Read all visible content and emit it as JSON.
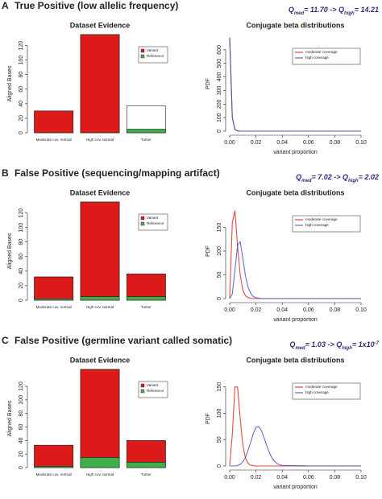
{
  "panels": [
    {
      "letter": "A",
      "title": "True Positive (low allelic frequency)",
      "annotation": {
        "q": "Q",
        "med": "med",
        "from": "= 11.70 -> Q",
        "high": "high",
        "to": "= 14.21"
      }
    },
    {
      "letter": "B",
      "title": "False Positive (sequencing/mapping artifact)",
      "annotation": {
        "q": "Q",
        "med": "med",
        "from": "= 7.02 -> Q",
        "high": "high",
        "to": "= 2.02"
      }
    },
    {
      "letter": "C",
      "title": "False Positive (germline variant called somatic)",
      "annotation": {
        "q": "Q",
        "med": "med",
        "from": "= 1.03 -> Q",
        "high": "high",
        "to": "= 1x10",
        "to_exp": "-7"
      }
    }
  ],
  "chart_data": [
    {
      "type": "bar",
      "title": "Dataset Evidence",
      "ylabel": "Aligned Bases",
      "categories": [
        "Moderate cov. normal",
        "High cov. normal",
        "Tumor"
      ],
      "depth": [
        30,
        135,
        37
      ],
      "series": [
        {
          "name": "Variant",
          "color": "#dd1a1a",
          "values": [
            30,
            135,
            0
          ]
        },
        {
          "name": "Reference",
          "color": "#3fae4a",
          "values": [
            0,
            0,
            5
          ]
        }
      ],
      "ylim": [
        0,
        135
      ],
      "yticks": [
        0,
        20,
        40,
        60,
        80,
        100,
        120
      ]
    },
    {
      "type": "line",
      "title": "Conjugate beta distributions",
      "xlabel": "variant proportion",
      "ylabel": "PDF",
      "x": [
        0,
        0.002,
        0.004,
        0.006,
        0.008,
        0.01,
        0.012,
        0.014,
        0.016,
        0.018,
        0.02,
        0.022,
        0.024,
        0.026,
        0.028,
        0.03,
        0.032,
        0.034,
        0.036,
        0.038,
        0.04,
        0.06,
        0.08,
        0.1
      ],
      "series": [
        {
          "name": "moderate coverage",
          "color": "#e31a1c",
          "values": [
            690,
            100,
            12,
            2,
            0,
            0,
            0,
            0,
            0,
            0,
            0,
            0,
            0,
            0,
            0,
            0,
            0,
            0,
            0,
            0,
            0,
            0,
            0,
            0
          ]
        },
        {
          "name": "high coverage",
          "color": "#3b4cc0",
          "values": [
            690,
            100,
            12,
            2,
            0,
            0,
            0,
            0,
            0,
            0,
            0,
            0,
            0,
            0,
            0,
            0,
            0,
            0,
            0,
            0,
            0,
            0,
            0,
            0
          ]
        }
      ],
      "xlim": [
        0,
        0.1
      ],
      "xticks": [
        {
          "value": 0,
          "label": "0.00"
        },
        0.02,
        0.04,
        0.06,
        0.08,
        {
          "value": 0.1,
          "label": "0.10"
        }
      ],
      "ylim": [
        0,
        700
      ],
      "yticks": [
        0,
        100,
        200,
        300,
        400,
        500,
        600
      ]
    },
    {
      "type": "bar",
      "title": "Dataset Evidence",
      "ylabel": "Aligned Bases",
      "categories": [
        "Moderate cov. normal",
        "High cov. normal",
        "Tumor"
      ],
      "depth": [
        32,
        135,
        36
      ],
      "series": [
        {
          "name": "Variant",
          "color": "#dd1a1a",
          "values": [
            30,
            130,
            31
          ]
        },
        {
          "name": "Reference",
          "color": "#3fae4a",
          "values": [
            2,
            5,
            5
          ]
        }
      ],
      "ylim": [
        0,
        135
      ],
      "yticks": [
        0,
        20,
        40,
        60,
        80,
        100,
        120
      ]
    },
    {
      "type": "line",
      "title": "Conjugate beta distributions",
      "xlabel": "variant proportion",
      "ylabel": "PDF",
      "x": [
        0,
        0.002,
        0.004,
        0.006,
        0.008,
        0.01,
        0.012,
        0.014,
        0.016,
        0.018,
        0.02,
        0.022,
        0.024,
        0.026,
        0.028,
        0.03,
        0.032,
        0.034,
        0.036,
        0.038,
        0.04,
        0.06,
        0.08,
        0.1
      ],
      "series": [
        {
          "name": "moderate coverage",
          "color": "#e31a1c",
          "values": [
            0,
            160,
            185,
            110,
            50,
            18,
            6,
            2,
            0.5,
            0,
            0,
            0,
            0,
            0,
            0,
            0,
            0,
            0,
            0,
            0,
            0,
            0,
            0,
            0
          ]
        },
        {
          "name": "high coverage",
          "color": "#3b4cc0",
          "values": [
            0,
            10,
            60,
            112,
            120,
            85,
            48,
            24,
            11,
            4,
            2,
            1,
            0,
            0,
            0,
            0,
            0,
            0,
            0,
            0,
            0,
            0,
            0,
            0
          ]
        }
      ],
      "xlim": [
        0,
        0.1
      ],
      "xticks": [
        {
          "value": 0,
          "label": "0.00"
        },
        0.02,
        0.04,
        0.06,
        0.08,
        {
          "value": 0.1,
          "label": "0.10"
        }
      ],
      "ylim": [
        0,
        200
      ],
      "yticks": [
        0,
        50,
        100,
        150
      ]
    },
    {
      "type": "bar",
      "title": "Dataset Evidence",
      "ylabel": "Aligned Bases",
      "categories": [
        "Moderate cov. normal",
        "High cov. normal",
        "Tumor"
      ],
      "depth": [
        33,
        145,
        40
      ],
      "series": [
        {
          "name": "Variant",
          "color": "#dd1a1a",
          "values": [
            31,
            130,
            32
          ]
        },
        {
          "name": "Reference",
          "color": "#3fae4a",
          "values": [
            2,
            15,
            8
          ]
        }
      ],
      "ylim": [
        0,
        145
      ],
      "yticks": [
        0,
        20,
        40,
        60,
        80,
        100,
        120
      ]
    },
    {
      "type": "line",
      "title": "Conjugate beta distributions",
      "xlabel": "variant proportion",
      "ylabel": "PDF",
      "x": [
        0,
        0.002,
        0.004,
        0.006,
        0.008,
        0.01,
        0.012,
        0.014,
        0.016,
        0.018,
        0.02,
        0.022,
        0.024,
        0.026,
        0.028,
        0.03,
        0.032,
        0.034,
        0.036,
        0.038,
        0.04,
        0.06,
        0.08,
        0.1
      ],
      "series": [
        {
          "name": "moderate coverage",
          "color": "#e31a1c",
          "values": [
            0,
            60,
            150,
            150,
            90,
            40,
            15,
            5,
            1.5,
            0.5,
            0,
            0,
            0,
            0,
            0,
            0,
            0,
            0,
            0,
            0,
            0,
            0,
            0,
            0
          ]
        },
        {
          "name": "high coverage",
          "color": "#3b4cc0",
          "values": [
            0,
            0,
            0,
            1,
            3,
            8,
            16,
            30,
            45,
            62,
            73,
            75,
            68,
            55,
            40,
            27,
            16,
            9,
            5,
            2,
            1,
            0,
            0,
            0
          ]
        }
      ],
      "xlim": [
        0,
        0.1
      ],
      "xticks": [
        {
          "value": 0,
          "label": "0.00"
        },
        0.02,
        0.04,
        0.06,
        0.08,
        {
          "value": 0.1,
          "label": "0.10"
        }
      ],
      "ylim": [
        0,
        180
      ],
      "yticks": [
        0,
        50,
        100,
        150
      ]
    }
  ]
}
